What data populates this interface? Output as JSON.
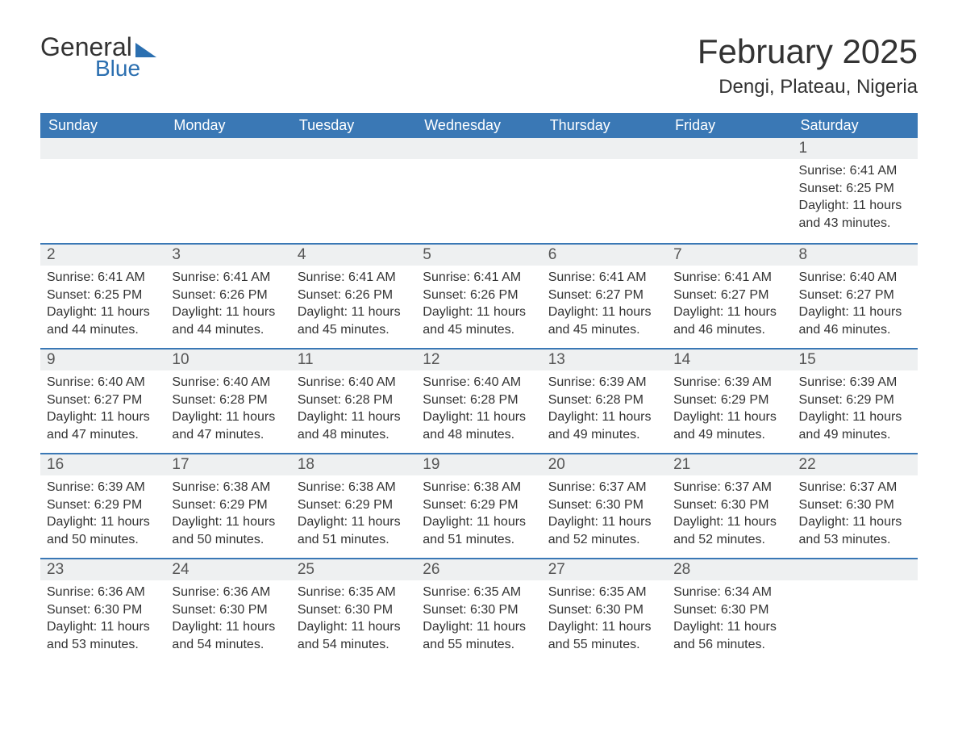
{
  "logo": {
    "text1": "General",
    "text2": "Blue"
  },
  "title": "February 2025",
  "location": "Dengi, Plateau, Nigeria",
  "colors": {
    "header_bg": "#3a78b5",
    "header_text": "#ffffff",
    "daynum_bg": "#eef0f1",
    "row_divider": "#3a78b5",
    "body_text": "#333333",
    "logo_blue": "#2b6fb0",
    "page_bg": "#ffffff"
  },
  "day_headers": [
    "Sunday",
    "Monday",
    "Tuesday",
    "Wednesday",
    "Thursday",
    "Friday",
    "Saturday"
  ],
  "labels": {
    "sunrise": "Sunrise:",
    "sunset": "Sunset:",
    "daylight": "Daylight:"
  },
  "weeks": [
    [
      null,
      null,
      null,
      null,
      null,
      null,
      {
        "n": "1",
        "sunrise": "6:41 AM",
        "sunset": "6:25 PM",
        "daylight": "11 hours and 43 minutes."
      }
    ],
    [
      {
        "n": "2",
        "sunrise": "6:41 AM",
        "sunset": "6:25 PM",
        "daylight": "11 hours and 44 minutes."
      },
      {
        "n": "3",
        "sunrise": "6:41 AM",
        "sunset": "6:26 PM",
        "daylight": "11 hours and 44 minutes."
      },
      {
        "n": "4",
        "sunrise": "6:41 AM",
        "sunset": "6:26 PM",
        "daylight": "11 hours and 45 minutes."
      },
      {
        "n": "5",
        "sunrise": "6:41 AM",
        "sunset": "6:26 PM",
        "daylight": "11 hours and 45 minutes."
      },
      {
        "n": "6",
        "sunrise": "6:41 AM",
        "sunset": "6:27 PM",
        "daylight": "11 hours and 45 minutes."
      },
      {
        "n": "7",
        "sunrise": "6:41 AM",
        "sunset": "6:27 PM",
        "daylight": "11 hours and 46 minutes."
      },
      {
        "n": "8",
        "sunrise": "6:40 AM",
        "sunset": "6:27 PM",
        "daylight": "11 hours and 46 minutes."
      }
    ],
    [
      {
        "n": "9",
        "sunrise": "6:40 AM",
        "sunset": "6:27 PM",
        "daylight": "11 hours and 47 minutes."
      },
      {
        "n": "10",
        "sunrise": "6:40 AM",
        "sunset": "6:28 PM",
        "daylight": "11 hours and 47 minutes."
      },
      {
        "n": "11",
        "sunrise": "6:40 AM",
        "sunset": "6:28 PM",
        "daylight": "11 hours and 48 minutes."
      },
      {
        "n": "12",
        "sunrise": "6:40 AM",
        "sunset": "6:28 PM",
        "daylight": "11 hours and 48 minutes."
      },
      {
        "n": "13",
        "sunrise": "6:39 AM",
        "sunset": "6:28 PM",
        "daylight": "11 hours and 49 minutes."
      },
      {
        "n": "14",
        "sunrise": "6:39 AM",
        "sunset": "6:29 PM",
        "daylight": "11 hours and 49 minutes."
      },
      {
        "n": "15",
        "sunrise": "6:39 AM",
        "sunset": "6:29 PM",
        "daylight": "11 hours and 49 minutes."
      }
    ],
    [
      {
        "n": "16",
        "sunrise": "6:39 AM",
        "sunset": "6:29 PM",
        "daylight": "11 hours and 50 minutes."
      },
      {
        "n": "17",
        "sunrise": "6:38 AM",
        "sunset": "6:29 PM",
        "daylight": "11 hours and 50 minutes."
      },
      {
        "n": "18",
        "sunrise": "6:38 AM",
        "sunset": "6:29 PM",
        "daylight": "11 hours and 51 minutes."
      },
      {
        "n": "19",
        "sunrise": "6:38 AM",
        "sunset": "6:29 PM",
        "daylight": "11 hours and 51 minutes."
      },
      {
        "n": "20",
        "sunrise": "6:37 AM",
        "sunset": "6:30 PM",
        "daylight": "11 hours and 52 minutes."
      },
      {
        "n": "21",
        "sunrise": "6:37 AM",
        "sunset": "6:30 PM",
        "daylight": "11 hours and 52 minutes."
      },
      {
        "n": "22",
        "sunrise": "6:37 AM",
        "sunset": "6:30 PM",
        "daylight": "11 hours and 53 minutes."
      }
    ],
    [
      {
        "n": "23",
        "sunrise": "6:36 AM",
        "sunset": "6:30 PM",
        "daylight": "11 hours and 53 minutes."
      },
      {
        "n": "24",
        "sunrise": "6:36 AM",
        "sunset": "6:30 PM",
        "daylight": "11 hours and 54 minutes."
      },
      {
        "n": "25",
        "sunrise": "6:35 AM",
        "sunset": "6:30 PM",
        "daylight": "11 hours and 54 minutes."
      },
      {
        "n": "26",
        "sunrise": "6:35 AM",
        "sunset": "6:30 PM",
        "daylight": "11 hours and 55 minutes."
      },
      {
        "n": "27",
        "sunrise": "6:35 AM",
        "sunset": "6:30 PM",
        "daylight": "11 hours and 55 minutes."
      },
      {
        "n": "28",
        "sunrise": "6:34 AM",
        "sunset": "6:30 PM",
        "daylight": "11 hours and 56 minutes."
      },
      null
    ]
  ]
}
